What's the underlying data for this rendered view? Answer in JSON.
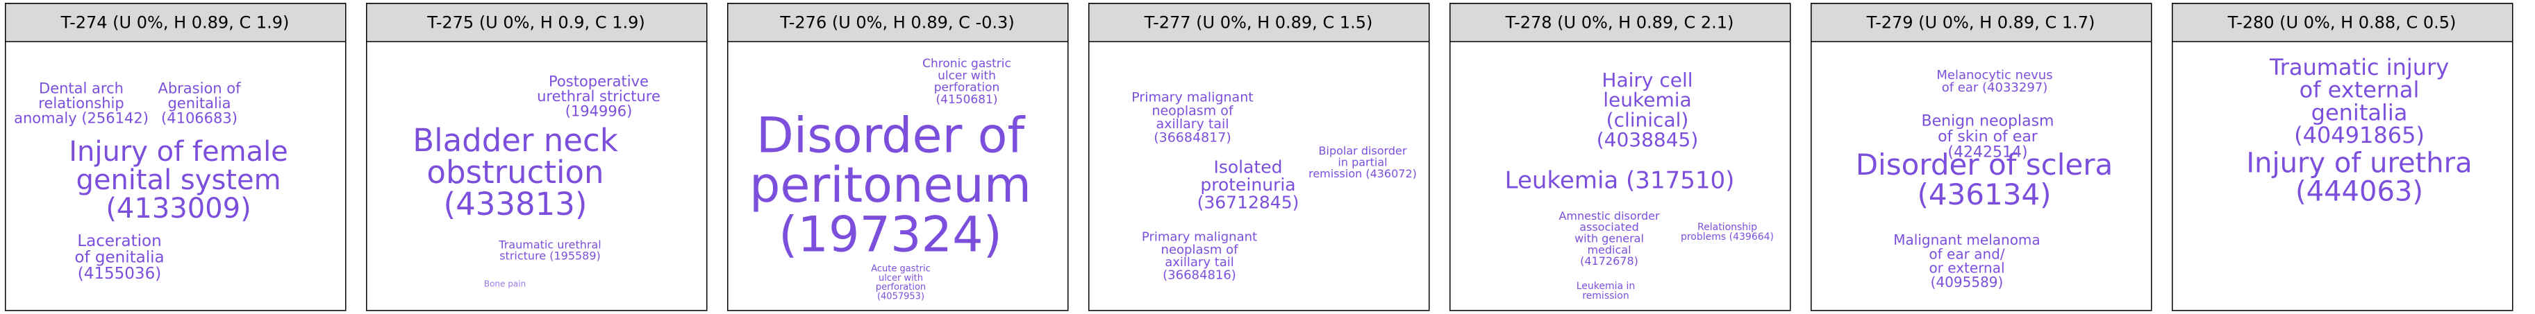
{
  "panels": [
    {
      "title": "T-274 (U 0%, H 0.89, C 1.9)",
      "words": [
        {
          "lines": [
            "Dental arch",
            "relationship",
            "anomaly (256142)"
          ]
        },
        {
          "lines": [
            "Abrasion of",
            "genitalia",
            "(4106683)"
          ]
        },
        {
          "lines": [
            "Injury of female",
            "genital system",
            "(4133009)"
          ]
        },
        {
          "lines": [
            "Laceration",
            "of genitalia",
            "(4155036)"
          ]
        }
      ]
    },
    {
      "title": "T-275 (U 0%, H 0.9, C 1.9)",
      "words": [
        {
          "lines": [
            "Postoperative",
            "urethral stricture",
            "(194996)"
          ]
        },
        {
          "lines": [
            "Bladder neck",
            "obstruction",
            "(433813)"
          ]
        },
        {
          "lines": [
            "Traumatic urethral",
            "stricture (195589)"
          ]
        },
        {
          "lines": [
            "Bone pain"
          ]
        }
      ]
    },
    {
      "title": "T-276 (U 0%, H 0.89, C -0.3)",
      "words": [
        {
          "lines": [
            "Chronic gastric",
            "ulcer with",
            "perforation",
            "(4150681)"
          ]
        },
        {
          "lines": [
            "Disorder of",
            "peritoneum",
            "(197324)"
          ]
        },
        {
          "lines": [
            "Acute gastric",
            "ulcer with",
            "perforation",
            "(4057953)"
          ]
        }
      ]
    },
    {
      "title": "T-277 (U 0%, H 0.89, C 1.5)",
      "words": [
        {
          "lines": [
            "Primary malignant",
            "neoplasm of",
            "axillary tail",
            "(36684817)"
          ]
        },
        {
          "lines": [
            "Isolated",
            "proteinuria",
            "(36712845)"
          ]
        },
        {
          "lines": [
            "Bipolar disorder",
            "in partial",
            "remission (436072)"
          ]
        },
        {
          "lines": [
            "Primary malignant",
            "neoplasm of",
            "axillary tail",
            "(36684816)"
          ]
        }
      ]
    },
    {
      "title": "T-278 (U 0%, H 0.89, C 2.1)",
      "words": [
        {
          "lines": [
            "Hairy cell",
            "leukemia",
            "(clinical)",
            "(4038845)"
          ]
        },
        {
          "lines": [
            "Leukemia (317510)"
          ]
        },
        {
          "lines": [
            "Amnestic disorder",
            "associated",
            "with general",
            "medical",
            "(4172678)"
          ]
        },
        {
          "lines": [
            "Relationship",
            "problems (439664)"
          ]
        },
        {
          "lines": [
            "Leukemia in",
            "remission"
          ]
        }
      ]
    },
    {
      "title": "T-279 (U 0%, H 0.89, C 1.7)",
      "words": [
        {
          "lines": [
            "Melanocytic nevus",
            "of ear (4033297)"
          ]
        },
        {
          "lines": [
            "Benign neoplasm",
            "of skin of ear",
            "(4242514)"
          ]
        },
        {
          "lines": [
            "Disorder of sclera",
            "(436134)"
          ]
        },
        {
          "lines": [
            "Malignant melanoma",
            "of ear and/",
            "or external",
            "(4095589)"
          ]
        }
      ]
    },
    {
      "title": "T-280 (U 0%, H 0.88, C 0.5)",
      "words": [
        {
          "lines": [
            "Traumatic injury",
            "of external",
            "genitalia",
            "(40491865)"
          ]
        },
        {
          "lines": [
            "Injury of urethra",
            "(444063)"
          ]
        }
      ]
    }
  ]
}
